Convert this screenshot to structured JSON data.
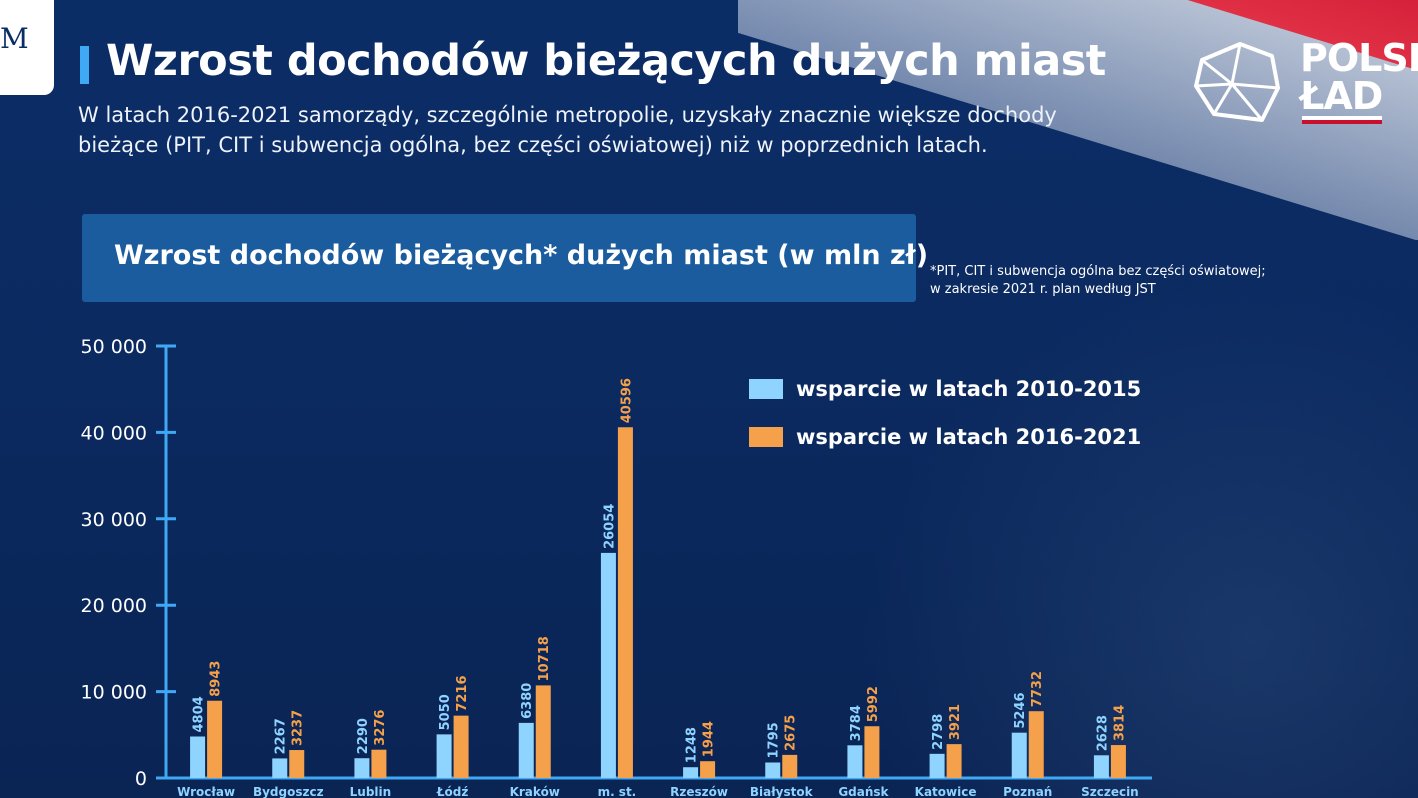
{
  "header": {
    "logo_text": "M",
    "title": "Wzrost dochodów bieżących dużych miast",
    "subtitle": "W latach 2016-2021 samorządy, szczególnie metropolie, uzyskały znacznie większe dochody bieżące (PIT, CIT i subwencja ogólna, bez części oświatowej) niż w poprzednich latach.",
    "brand_line1": "POLSK",
    "brand_line2": "ŁAD"
  },
  "colors": {
    "background": "#0b2d66",
    "series_2010_2015": "#8fd3ff",
    "series_2016_2021": "#f5a04a",
    "axis": "#3fa9f5",
    "accent_red": "#c8102e"
  },
  "chart_data": {
    "type": "bar",
    "title": "Wzrost dochodów bieżących* dużych miast (w mln zł)",
    "footnote_line1": "*PIT, CIT i subwencja ogólna bez części oświatowej;",
    "footnote_line2": "w zakresie 2021 r. plan według JST",
    "categories": [
      "Wrocław",
      "Bydgoszcz",
      "Lublin",
      "Łódź",
      "Kraków",
      "m. st.",
      "Rzeszów",
      "Białystok",
      "Gdańsk",
      "Katowice",
      "Poznań",
      "Szczecin"
    ],
    "series": [
      {
        "name": "wsparcie w latach 2010-2015",
        "values": [
          4804,
          2267,
          2290,
          5050,
          6380,
          26054,
          1248,
          1795,
          3784,
          2798,
          5246,
          2628
        ]
      },
      {
        "name": "wsparcie w latach 2016-2021",
        "values": [
          8943,
          3237,
          3276,
          7216,
          10718,
          40596,
          1944,
          2675,
          5992,
          3921,
          7732,
          3814
        ]
      }
    ],
    "ylim": [
      0,
      50000
    ],
    "yticks": [
      0,
      10000,
      20000,
      30000,
      40000,
      50000
    ],
    "ytick_labels": [
      "0",
      "10 000",
      "20 000",
      "30 000",
      "40 000",
      "50 000"
    ],
    "legend_position": "top-right",
    "grid": false
  }
}
